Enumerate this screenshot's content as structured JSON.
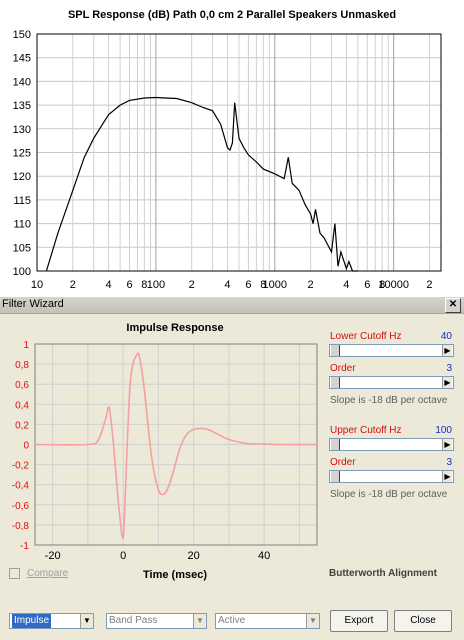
{
  "spl_chart": {
    "title": "SPL Response (dB)   Path 0,0 cm   2 Parallel Speakers   Unmasked",
    "y_ticks": [
      "150",
      "145",
      "140",
      "135",
      "130",
      "125",
      "120",
      "115",
      "110",
      "105",
      "100"
    ],
    "x_ticks": [
      "10",
      "2",
      "4",
      "6",
      "8",
      "100",
      "2",
      "4",
      "6",
      "8",
      "1000",
      "2",
      "4",
      "6",
      "8",
      "10000",
      "2"
    ]
  },
  "chart_data": [
    {
      "type": "line",
      "title": "SPL Response (dB)   Path 0,0 cm   2 Parallel Speakers   Unmasked",
      "xscale": "log",
      "xlim": [
        10,
        25000
      ],
      "ylim": [
        100,
        150
      ],
      "grid": true,
      "series": [
        {
          "x": [
            12,
            15,
            20,
            25,
            30,
            40,
            50,
            60,
            80,
            100,
            120,
            150,
            200,
            250,
            300,
            350,
            400,
            420,
            440,
            460,
            500,
            550,
            600,
            700,
            800,
            1000,
            1200,
            1300,
            1400,
            1600,
            1800,
            2000,
            2100,
            2200,
            2400,
            2600,
            3000,
            3200,
            3400,
            3600,
            4000,
            4200,
            4500,
            5000
          ],
          "y": [
            100,
            108,
            117,
            124,
            128,
            133,
            135,
            136,
            136.5,
            136.6,
            136.5,
            136.4,
            135.5,
            134.5,
            133.8,
            131,
            126,
            125.5,
            127,
            135.5,
            128,
            126,
            124.5,
            123,
            121.5,
            120.5,
            119.5,
            124,
            118.5,
            117,
            114,
            112,
            110,
            113,
            108,
            107,
            104,
            110,
            101,
            104,
            100.5,
            102,
            99,
            98
          ]
        }
      ]
    },
    {
      "type": "line",
      "title": "Impulse Response",
      "xlabel": "Time (msec)",
      "xlim": [
        -25,
        55
      ],
      "ylim": [
        -1,
        1
      ],
      "grid": true,
      "series": [
        {
          "x": [
            -25,
            -10,
            -7,
            -5,
            -4,
            -3,
            -1,
            0,
            0.5,
            2,
            4,
            5,
            6,
            8,
            10,
            12,
            14,
            16,
            18,
            20,
            22,
            24,
            27,
            30,
            35,
            40,
            45,
            55
          ],
          "y": [
            0,
            0,
            0.05,
            0.25,
            0.37,
            0.1,
            -0.7,
            -0.93,
            -0.6,
            0.6,
            0.9,
            0.8,
            0.55,
            -0.1,
            -0.45,
            -0.48,
            -0.3,
            -0.05,
            0.1,
            0.15,
            0.16,
            0.15,
            0.1,
            0.05,
            0.01,
            0.005,
            0,
            0
          ]
        }
      ],
      "y_ticks": [
        "1",
        "0,8",
        "0,6",
        "0,4",
        "0,2",
        "0",
        "-0,2",
        "-0,4",
        "-0,6",
        "-0,8",
        "-1"
      ],
      "x_ticks": [
        "-20",
        "0",
        "20",
        "40"
      ]
    }
  ],
  "filter_wizard": {
    "title": "Filter Wizard",
    "close_glyph": "✕",
    "impulse_title": "Impulse Response",
    "time_label": "Time (msec)",
    "compare_label": "Compare",
    "alignment": "Butterworth Alignment",
    "lower": {
      "label": "Lower Cutoff  Hz",
      "value": "40",
      "order_label": "Order",
      "order_value": "3",
      "slope": "Slope is -18 dB per octave"
    },
    "upper": {
      "label": "Upper Cutoff  Hz",
      "value": "100",
      "order_label": "Order",
      "order_value": "3",
      "slope": "Slope is -18 dB per octave"
    },
    "combo_view": "Impulse",
    "combo_type": "Band Pass",
    "combo_mode": "Active",
    "export_label": "Export",
    "close_label": "Close",
    "colors": {
      "impulse_line": "#f4a0a0",
      "red_text": "#d01010",
      "blue_text": "#1030c0"
    }
  }
}
